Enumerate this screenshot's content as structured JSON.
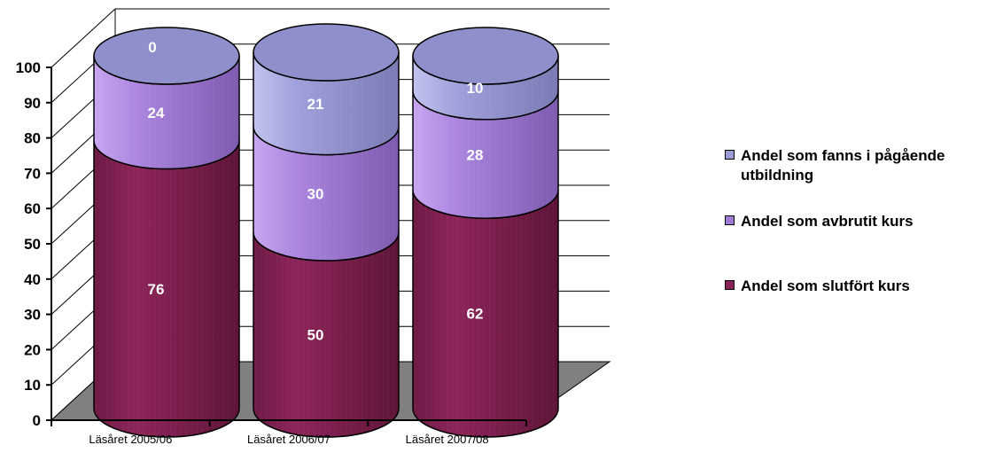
{
  "chart_data": {
    "type": "bar",
    "style": "stacked 3D cylinder",
    "categories": [
      "Läsåret 2005/06",
      "Läsåret 2006/07",
      "Läsåret 2007/08"
    ],
    "series": [
      {
        "name": "Andel som slutfört kurs",
        "values": [
          76,
          50,
          62
        ],
        "color": "#8b2257"
      },
      {
        "name": "Andel som avbrutit kurs",
        "values": [
          24,
          30,
          28
        ],
        "color": "#a07ad4"
      },
      {
        "name": "Andel som fanns i pågående utbildning",
        "values": [
          0,
          21,
          10
        ],
        "color": "#9b9bd6"
      }
    ],
    "yticks": [
      0,
      10,
      20,
      30,
      40,
      50,
      60,
      70,
      80,
      90,
      100
    ],
    "ylim": [
      0,
      100
    ],
    "grid": true,
    "legend_position": "right",
    "floor_color": "#808080"
  }
}
